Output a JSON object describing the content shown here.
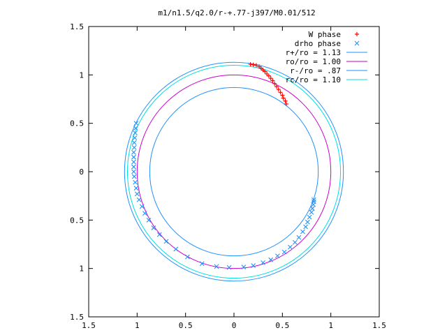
{
  "chart_data": {
    "type": "scatter",
    "title": "m1/n1.5/q2.0/r-+.77-j397/M0.01/512",
    "xlabel": "",
    "ylabel": "",
    "xlim": [
      -1.5,
      1.5
    ],
    "ylim": [
      -1.5,
      1.5
    ],
    "x_ticks": [
      -1.5,
      -1,
      -0.5,
      0,
      0.5,
      1,
      1.5
    ],
    "x_tick_labels": [
      "1.5",
      "1",
      "0.5",
      "0",
      "0.5",
      "1",
      "1.5"
    ],
    "y_ticks": [
      1.5,
      1,
      0.5,
      0,
      -0.5,
      -1,
      -1.5
    ],
    "y_tick_labels": [
      "1.5",
      "1",
      "0.5",
      "0",
      "0.5",
      "1",
      "1.5"
    ],
    "grid": false,
    "legend_position": "top-right",
    "series": [
      {
        "name": "W phase",
        "kind": "points",
        "marker": "plus",
        "color": "#ff0000",
        "x": [
          0.17,
          0.2,
          0.23,
          0.26,
          0.28,
          0.3,
          0.32,
          0.34,
          0.36,
          0.38,
          0.4,
          0.42,
          0.44,
          0.46,
          0.48,
          0.5,
          0.51,
          0.53,
          0.54
        ],
        "y": [
          1.11,
          1.105,
          1.1,
          1.085,
          1.07,
          1.05,
          1.035,
          1.01,
          0.99,
          0.965,
          0.94,
          0.91,
          0.88,
          0.85,
          0.82,
          0.79,
          0.76,
          0.73,
          0.7
        ]
      },
      {
        "name": "drho phase",
        "kind": "points",
        "marker": "cross",
        "color": "#1e90ff",
        "x": [
          -1.01,
          -1.015,
          -1.02,
          -1.025,
          -1.03,
          -1.03,
          -1.035,
          -1.035,
          -1.035,
          -1.035,
          -1.035,
          -1.03,
          -1.02,
          -1.01,
          -1.0,
          -0.98,
          -0.95,
          -0.92,
          -0.88,
          -0.83,
          -0.77,
          -0.7,
          -0.6,
          -0.48,
          -0.33,
          -0.18,
          -0.05,
          0.1,
          0.2,
          0.3,
          0.38,
          0.45,
          0.52,
          0.58,
          0.63,
          0.67,
          0.71,
          0.74,
          0.76,
          0.78,
          0.8,
          0.81,
          0.82,
          0.825,
          0.825
        ],
        "y": [
          0.5,
          0.45,
          0.4,
          0.35,
          0.3,
          0.25,
          0.2,
          0.15,
          0.1,
          0.05,
          0.0,
          -0.05,
          -0.11,
          -0.17,
          -0.23,
          -0.29,
          -0.36,
          -0.43,
          -0.5,
          -0.58,
          -0.65,
          -0.72,
          -0.8,
          -0.88,
          -0.95,
          -0.98,
          -0.99,
          -0.985,
          -0.97,
          -0.94,
          -0.91,
          -0.87,
          -0.83,
          -0.78,
          -0.73,
          -0.68,
          -0.62,
          -0.57,
          -0.52,
          -0.47,
          -0.42,
          -0.38,
          -0.34,
          -0.31,
          -0.29
        ]
      },
      {
        "name": "r+/ro = 1.13",
        "kind": "circle",
        "radius": 1.13,
        "color": "#1e90ff"
      },
      {
        "name": "ro/ro = 1.00",
        "kind": "circle",
        "radius": 1.0,
        "color": "#cc00cc"
      },
      {
        "name": "r-/ro = .87",
        "kind": "circle",
        "radius": 0.87,
        "color": "#1e90ff"
      },
      {
        "name": "rc/ro = 1.10",
        "kind": "circle",
        "radius": 1.1,
        "color": "#00e0e0"
      }
    ]
  }
}
